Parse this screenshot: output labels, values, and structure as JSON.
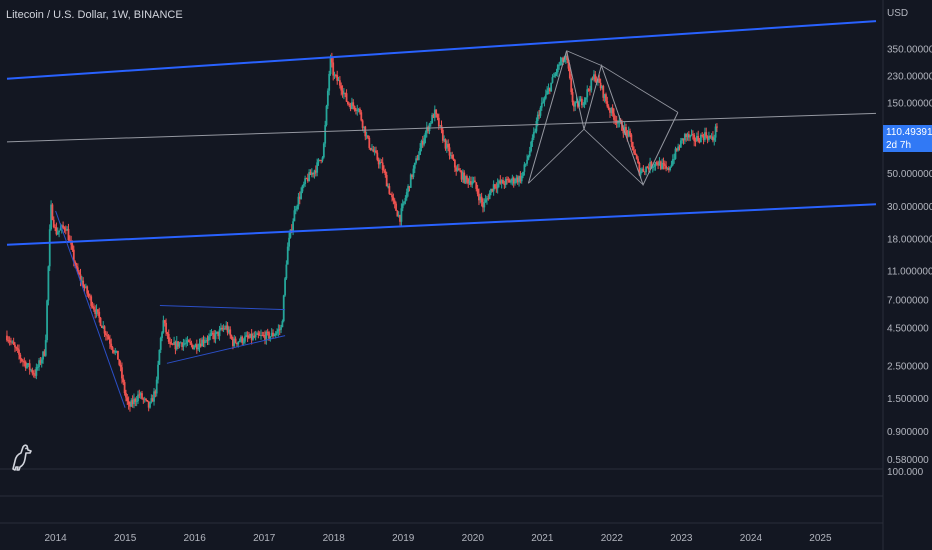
{
  "header": {
    "symbol_title": "Litecoin / U.S. Dollar, 1W, BINANCE",
    "currency": "USD"
  },
  "price_tag": {
    "price": "110.49391B",
    "countdown": "2d 7h"
  },
  "colors": {
    "background": "#131722",
    "up": "#26a69a",
    "down": "#ef5350",
    "channel": "#2962ff",
    "midline": "#9598a1",
    "pattern": "#9598a1",
    "triangle": "#2b4fc7",
    "axis_text": "#b2b5be",
    "price_tag": "#3179f5"
  },
  "icons": {
    "logo": "tradingview-dino-logo"
  },
  "chart_data": {
    "type": "candlestick",
    "title": "Litecoin / U.S. Dollar, 1W, BINANCE",
    "y_scale": "log",
    "ylim": [
      0.5,
      750
    ],
    "xlim": [
      2013.2,
      2025.9
    ],
    "x_ticks": [
      "2014",
      "2015",
      "2016",
      "2017",
      "2018",
      "2019",
      "2020",
      "2021",
      "2022",
      "2023",
      "2024",
      "2025"
    ],
    "y_ticks": [
      {
        "value": 350,
        "label": "350.000000"
      },
      {
        "value": 230,
        "label": "230.000000"
      },
      {
        "value": 150,
        "label": "150.000000"
      },
      {
        "value": 50,
        "label": "50.000000"
      },
      {
        "value": 30,
        "label": "30.000000"
      },
      {
        "value": 18,
        "label": "18.000000"
      },
      {
        "value": 11,
        "label": "11.000000"
      },
      {
        "value": 7,
        "label": "7.000000"
      },
      {
        "value": 4.5,
        "label": "4.500000"
      },
      {
        "value": 2.5,
        "label": "2.500000"
      },
      {
        "value": 1.5,
        "label": "1.500000"
      },
      {
        "value": 0.9,
        "label": "0.900000"
      },
      {
        "value": 0.58,
        "label": "0.580000"
      }
    ],
    "y_ticks_subpane": [
      {
        "value": 0,
        "label": "100.000"
      }
    ],
    "current_price": 110.49,
    "price_path": [
      [
        2013.3,
        4.0
      ],
      [
        2013.5,
        2.8
      ],
      [
        2013.7,
        2.2
      ],
      [
        2013.85,
        3.2
      ],
      [
        2013.93,
        30
      ],
      [
        2014.0,
        20
      ],
      [
        2014.15,
        22
      ],
      [
        2014.3,
        11
      ],
      [
        2014.5,
        7
      ],
      [
        2014.7,
        4.4
      ],
      [
        2014.9,
        2.8
      ],
      [
        2015.0,
        1.6
      ],
      [
        2015.05,
        1.3
      ],
      [
        2015.2,
        1.6
      ],
      [
        2015.35,
        1.3
      ],
      [
        2015.45,
        1.8
      ],
      [
        2015.5,
        3.5
      ],
      [
        2015.55,
        5.0
      ],
      [
        2015.65,
        3.3
      ],
      [
        2015.8,
        3.6
      ],
      [
        2016.0,
        3.4
      ],
      [
        2016.15,
        3.8
      ],
      [
        2016.3,
        4.0
      ],
      [
        2016.45,
        4.6
      ],
      [
        2016.55,
        3.6
      ],
      [
        2016.7,
        3.8
      ],
      [
        2016.9,
        3.9
      ],
      [
        2017.1,
        4.0
      ],
      [
        2017.25,
        4.5
      ],
      [
        2017.33,
        15
      ],
      [
        2017.45,
        30
      ],
      [
        2017.6,
        45
      ],
      [
        2017.75,
        55
      ],
      [
        2017.85,
        70
      ],
      [
        2017.95,
        300
      ],
      [
        2018.0,
        230
      ],
      [
        2018.1,
        200
      ],
      [
        2018.2,
        150
      ],
      [
        2018.35,
        140
      ],
      [
        2018.5,
        80
      ],
      [
        2018.7,
        55
      ],
      [
        2018.85,
        32
      ],
      [
        2018.95,
        25
      ],
      [
        2019.1,
        45
      ],
      [
        2019.3,
        90
      ],
      [
        2019.45,
        130
      ],
      [
        2019.6,
        80
      ],
      [
        2019.75,
        55
      ],
      [
        2019.9,
        45
      ],
      [
        2020.0,
        45
      ],
      [
        2020.15,
        30
      ],
      [
        2020.3,
        42
      ],
      [
        2020.5,
        44
      ],
      [
        2020.7,
        47
      ],
      [
        2020.85,
        80
      ],
      [
        2020.95,
        130
      ],
      [
        2021.1,
        190
      ],
      [
        2021.25,
        280
      ],
      [
        2021.35,
        300
      ],
      [
        2021.45,
        140
      ],
      [
        2021.6,
        160
      ],
      [
        2021.75,
        230
      ],
      [
        2021.85,
        190
      ],
      [
        2021.95,
        140
      ],
      [
        2022.1,
        110
      ],
      [
        2022.25,
        90
      ],
      [
        2022.4,
        52
      ],
      [
        2022.5,
        55
      ],
      [
        2022.65,
        60
      ],
      [
        2022.8,
        52
      ],
      [
        2022.92,
        70
      ],
      [
        2023.05,
        90
      ],
      [
        2023.2,
        85
      ],
      [
        2023.35,
        92
      ],
      [
        2023.45,
        84
      ],
      [
        2023.52,
        110
      ]
    ],
    "annotations": [
      {
        "type": "trend_line",
        "name": "channel-upper",
        "points": [
          [
            2013.3,
            220
          ],
          [
            2025.8,
            540
          ]
        ]
      },
      {
        "type": "trend_line",
        "name": "channel-lower",
        "points": [
          [
            2013.3,
            16.5
          ],
          [
            2025.8,
            31
          ]
        ]
      },
      {
        "type": "trend_line",
        "name": "midline",
        "points": [
          [
            2013.3,
            82
          ],
          [
            2025.8,
            128
          ]
        ]
      },
      {
        "type": "trend_line",
        "name": "downtrend-2014",
        "points": [
          [
            2014.0,
            28
          ],
          [
            2015.0,
            1.3
          ]
        ]
      },
      {
        "type": "trend_line",
        "name": "triangle-upper",
        "points": [
          [
            2015.5,
            6.4
          ],
          [
            2017.3,
            6.0
          ]
        ]
      },
      {
        "type": "trend_line",
        "name": "triangle-lower",
        "points": [
          [
            2015.6,
            2.6
          ],
          [
            2017.3,
            4.0
          ]
        ]
      },
      {
        "type": "pattern",
        "name": "harmonic-pattern",
        "points": [
          [
            2020.8,
            43
          ],
          [
            2021.35,
            340
          ],
          [
            2021.6,
            100
          ],
          [
            2021.85,
            270
          ],
          [
            2022.45,
            42
          ],
          [
            2022.95,
            130
          ]
        ]
      }
    ]
  }
}
